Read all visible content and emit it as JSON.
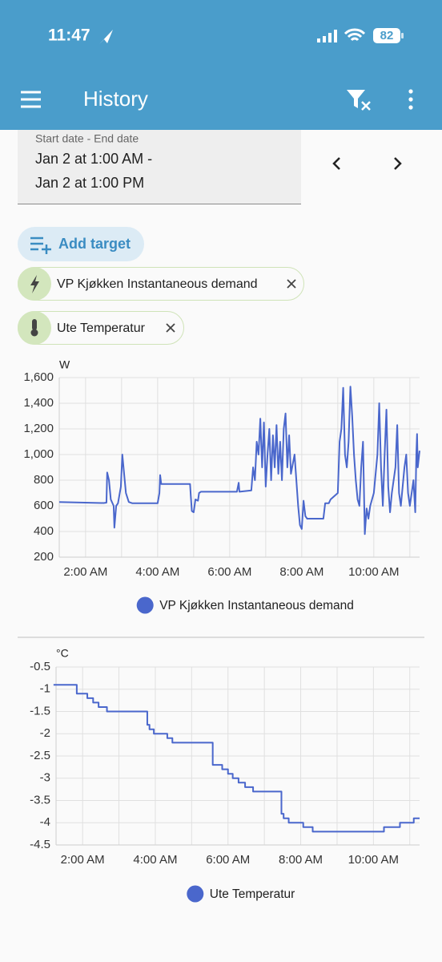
{
  "status_bar": {
    "time": "11:47",
    "battery": "82"
  },
  "app_bar": {
    "title": "History"
  },
  "date_range": {
    "label": "Start date - End date",
    "start": "Jan 2 at 1:00 AM -",
    "end": "Jan 2 at 1:00 PM"
  },
  "add_target": "Add target",
  "targets": [
    "VP Kjøkken Instantaneous demand",
    "Ute Temperatur"
  ],
  "charts": [
    {
      "type": "line",
      "unit": "W",
      "grid": true,
      "xlim": [
        1.27,
        11.27
      ],
      "xticks": [
        {
          "value": 2,
          "label": "2:00 AM"
        },
        {
          "value": 4,
          "label": "4:00 AM"
        },
        {
          "value": 6,
          "label": "6:00 AM"
        },
        {
          "value": 8,
          "label": "8:00 AM"
        },
        {
          "value": 10,
          "label": "10:00 AM"
        }
      ],
      "xminorticks": [
        3,
        5,
        7,
        9,
        11
      ],
      "ylim": [
        200,
        1600
      ],
      "yticks": [
        200,
        400,
        600,
        800,
        {
          "value": 1000,
          "label": "1,000"
        },
        {
          "value": 1200,
          "label": "1,200"
        },
        {
          "value": 1400,
          "label": "1,400"
        },
        {
          "value": 1600,
          "label": "1,600"
        }
      ],
      "series": [
        {
          "name": "VP Kjøkken Instantaneous demand",
          "color": "#4a67cc",
          "x": [
            1.27,
            2.5,
            2.58,
            2.6,
            2.65,
            2.7,
            2.78,
            2.8,
            2.85,
            2.9,
            2.98,
            3.02,
            3.07,
            3.12,
            3.2,
            3.3,
            4.0,
            4.05,
            4.07,
            4.1,
            4.9,
            4.92,
            4.95,
            5.0,
            5.05,
            5.12,
            5.15,
            5.2,
            6.2,
            6.25,
            6.27,
            6.6,
            6.65,
            6.7,
            6.75,
            6.8,
            6.85,
            6.9,
            6.95,
            7.0,
            7.05,
            7.1,
            7.15,
            7.2,
            7.25,
            7.3,
            7.35,
            7.4,
            7.45,
            7.5,
            7.55,
            7.6,
            7.65,
            7.7,
            7.8,
            7.85,
            7.9,
            7.95,
            8.0,
            8.05,
            8.1,
            8.15,
            8.6,
            8.65,
            8.75,
            8.8,
            9.0,
            9.05,
            9.1,
            9.15,
            9.2,
            9.25,
            9.3,
            9.35,
            9.4,
            9.45,
            9.5,
            9.55,
            9.6,
            9.65,
            9.7,
            9.75,
            9.8,
            9.85,
            9.9,
            10.0,
            10.1,
            10.15,
            10.2,
            10.25,
            10.3,
            10.35,
            10.4,
            10.45,
            10.5,
            10.6,
            10.65,
            10.7,
            10.75,
            10.8,
            10.85,
            10.9,
            10.95,
            11.0,
            11.1,
            11.15,
            11.18,
            11.2,
            11.22,
            11.27
          ],
          "values": [
            630,
            622,
            625,
            860,
            800,
            650,
            600,
            430,
            600,
            620,
            750,
            1000,
            850,
            700,
            630,
            620,
            620,
            700,
            840,
            770,
            770,
            680,
            560,
            550,
            650,
            640,
            700,
            710,
            710,
            780,
            710,
            720,
            900,
            800,
            1100,
            1000,
            1280,
            900,
            1250,
            750,
            1000,
            1200,
            800,
            1150,
            900,
            1230,
            850,
            1100,
            800,
            1200,
            1320,
            900,
            1150,
            850,
            1000,
            800,
            600,
            450,
            420,
            640,
            520,
            500,
            500,
            620,
            620,
            650,
            700,
            1100,
            1200,
            1520,
            1000,
            900,
            1100,
            1530,
            1300,
            1000,
            800,
            650,
            600,
            900,
            1100,
            380,
            580,
            500,
            600,
            700,
            1000,
            1400,
            900,
            600,
            1000,
            1350,
            750,
            550,
            700,
            900,
            1230,
            700,
            600,
            750,
            900,
            1000,
            700,
            600,
            800,
            550,
            1000,
            1160,
            900,
            1030
          ]
        }
      ]
    },
    {
      "type": "line",
      "unit": "°C",
      "grid": true,
      "xlim": [
        1.27,
        11.27
      ],
      "xticks": [
        {
          "value": 2,
          "label": "2:00 AM"
        },
        {
          "value": 4,
          "label": "4:00 AM"
        },
        {
          "value": 6,
          "label": "6:00 AM"
        },
        {
          "value": 8,
          "label": "8:00 AM"
        },
        {
          "value": 10,
          "label": "10:00 AM"
        }
      ],
      "xminorticks": [
        3,
        5,
        7,
        9,
        11
      ],
      "ylim": [
        -4.5,
        -0.5
      ],
      "yticks": [
        -0.5,
        -1,
        -1.5,
        -2,
        -2.5,
        -3,
        -3.5,
        -4,
        -4.5
      ],
      "series": [
        {
          "name": "Ute Temperatur",
          "color": "#4a67cc",
          "x": [
            1.2,
            1.84,
            1.84,
            2.13,
            2.13,
            2.29,
            2.29,
            2.44,
            2.44,
            2.67,
            2.67,
            3.78,
            3.78,
            3.84,
            3.84,
            3.96,
            3.96,
            4.33,
            4.33,
            4.47,
            4.47,
            4.62,
            4.62,
            5.58,
            5.58,
            5.84,
            5.84,
            6.0,
            6.0,
            6.13,
            6.13,
            6.29,
            6.29,
            6.47,
            6.47,
            6.69,
            6.69,
            7.47,
            7.47,
            7.53,
            7.53,
            7.67,
            7.67,
            7.8,
            7.8,
            8.07,
            8.07,
            8.33,
            8.33,
            10.29,
            10.29,
            10.73,
            10.73,
            11.11,
            11.11,
            11.27
          ],
          "values": [
            -0.9,
            -0.9,
            -1.1,
            -1.1,
            -1.2,
            -1.2,
            -1.3,
            -1.3,
            -1.4,
            -1.4,
            -1.5,
            -1.5,
            -1.8,
            -1.8,
            -1.9,
            -1.9,
            -2.0,
            -2.0,
            -2.1,
            -2.1,
            -2.2,
            -2.2,
            -2.2,
            -2.2,
            -2.7,
            -2.7,
            -2.8,
            -2.8,
            -2.9,
            -2.9,
            -3.0,
            -3.0,
            -3.1,
            -3.1,
            -3.2,
            -3.2,
            -3.3,
            -3.3,
            -3.8,
            -3.8,
            -3.9,
            -3.9,
            -4.0,
            -4.0,
            -4.0,
            -4.0,
            -4.1,
            -4.1,
            -4.2,
            -4.2,
            -4.1,
            -4.1,
            -4.0,
            -4.0,
            -3.9,
            -3.9
          ]
        }
      ]
    }
  ]
}
